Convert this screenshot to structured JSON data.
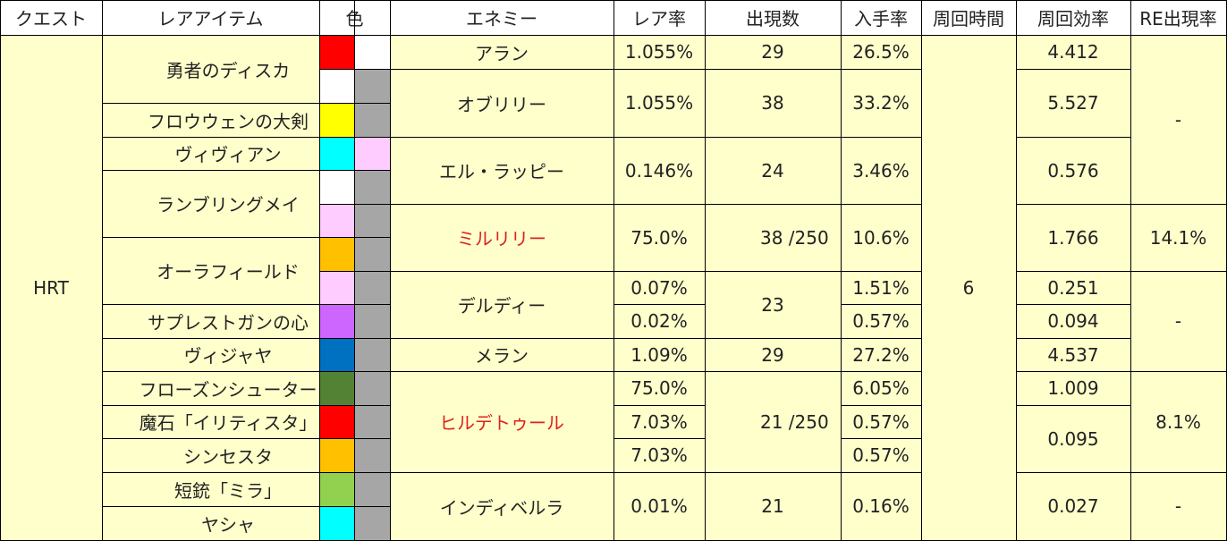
{
  "headers": {
    "quest": "クエスト",
    "item": "レアアイテム",
    "color": "色",
    "enemy": "エネミー",
    "rare_rate": "レア率",
    "appear_count": "出現数",
    "obtain_rate": "入手率",
    "loop_time": "周回時間",
    "loop_eff": "周回効率",
    "re_rate": "RE出現率"
  },
  "quest": {
    "name": "HRT",
    "loop_time": "6"
  },
  "items": [
    {
      "name": "勇者のディスカ",
      "colors": [
        "#ff0000",
        "#ffffff",
        "#ffffff",
        "#a6a6a6"
      ]
    },
    {
      "name": "フロウウェンの大剣",
      "colors": [
        "#ffff00",
        "#a6a6a6"
      ]
    },
    {
      "name": "ヴィヴィアン",
      "colors": [
        "#00ffff",
        "#ffccff"
      ]
    },
    {
      "name": "ランブリングメイ",
      "colors": [
        "#ffffff",
        "#a6a6a6",
        "#ffccff",
        "#a6a6a6"
      ]
    },
    {
      "name": "オーラフィールド",
      "colors": [
        "#ffc000",
        "#a6a6a6",
        "#ffccff",
        "#a6a6a6"
      ]
    },
    {
      "name": "サプレストガンの心",
      "colors": [
        "#cc66ff",
        "#a6a6a6"
      ]
    },
    {
      "name": "ヴィジャヤ",
      "colors": [
        "#0070c0",
        "#a6a6a6"
      ]
    },
    {
      "name": "フローズンシューター",
      "colors": [
        "#548235",
        "#a6a6a6"
      ]
    },
    {
      "name": "魔石「イリティスタ」",
      "colors": [
        "#ff0000",
        "#a6a6a6"
      ]
    },
    {
      "name": "シンセスタ",
      "colors": [
        "#ffc000",
        "#a6a6a6"
      ]
    },
    {
      "name": "短銃「ミラ」",
      "colors": [
        "#92d050",
        "#a6a6a6"
      ]
    },
    {
      "name": "ヤシャ",
      "colors": [
        "#00ffff",
        "#a6a6a6"
      ]
    }
  ],
  "enemies": [
    {
      "name": "アラン",
      "highlight": false
    },
    {
      "name": "オブリリー",
      "highlight": false
    },
    {
      "name": "エル・ラッピー",
      "highlight": false
    },
    {
      "name": "ミルリリー",
      "highlight": true
    },
    {
      "name": "デルディー",
      "highlight": false
    },
    {
      "name": "メラン",
      "highlight": false
    },
    {
      "name": "ヒルデトゥール",
      "highlight": true
    },
    {
      "name": "インディベルラ",
      "highlight": false
    }
  ],
  "rare_rates": [
    "1.055%",
    "1.055%",
    "0.146%",
    "75.0%",
    "0.07%",
    "0.02%",
    "1.09%",
    "75.0%",
    "7.03%",
    "7.03%",
    "0.01%"
  ],
  "appear_counts": [
    "29",
    "38",
    "24",
    "38 /250",
    "23",
    "29",
    "21 /250",
    "21"
  ],
  "obtain_rates": [
    "26.5%",
    "33.2%",
    "3.46%",
    "10.6%",
    "1.51%",
    "0.57%",
    "27.2%",
    "6.05%",
    "0.57%",
    "0.57%",
    "0.16%"
  ],
  "loop_efficiencies": [
    "4.412",
    "5.527",
    "0.576",
    "1.766",
    "0.251",
    "0.094",
    "4.537",
    "1.009",
    "0.095",
    "0.027"
  ],
  "re_rates": [
    "-",
    "14.1%",
    "-",
    "8.1%",
    "-"
  ]
}
